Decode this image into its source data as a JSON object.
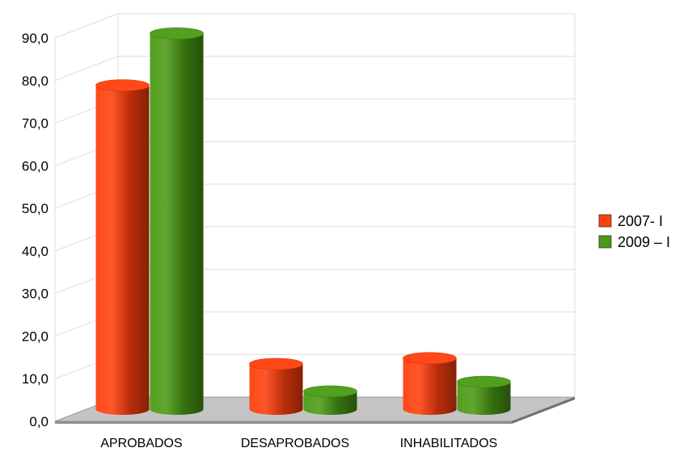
{
  "chart_data": {
    "type": "bar",
    "style": "3d-cylinder",
    "title": "",
    "xlabel": "",
    "ylabel": "",
    "ylim": [
      0,
      90
    ],
    "y_ticks": [
      "0,0",
      "10,0",
      "20,0",
      "30,0",
      "40,0",
      "50,0",
      "60,0",
      "70,0",
      "80,0",
      "90,0"
    ],
    "categories": [
      "APROBADOS",
      "DESAPROBADOS",
      "INHABILITADOS"
    ],
    "series": [
      {
        "name": "2007- I",
        "color": "#ff3f0d",
        "values": [
          78.0,
          10.9,
          12.3
        ]
      },
      {
        "name": "2009 – I",
        "color": "#4a9a14",
        "values": [
          90.5,
          4.3,
          6.6
        ]
      }
    ],
    "grid": true,
    "legend_position": "right"
  }
}
